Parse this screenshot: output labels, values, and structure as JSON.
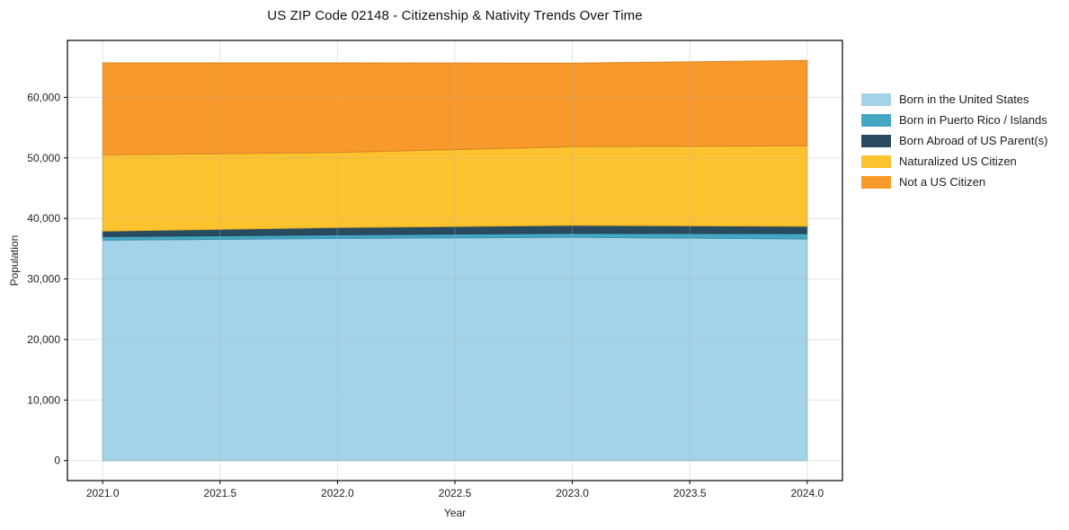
{
  "chart_data": {
    "type": "area",
    "stacked": true,
    "title": "US ZIP Code 02148 - Citizenship & Nativity Trends Over Time",
    "xlabel": "Year",
    "ylabel": "Population",
    "x": [
      2021,
      2022,
      2023,
      2024
    ],
    "series": [
      {
        "name": "Born in the United States",
        "color": "#a3d3e9",
        "values": [
          36400,
          36700,
          36900,
          36600
        ]
      },
      {
        "name": "Born in Puerto Rico / Islands",
        "color": "#44a7c4",
        "values": [
          600,
          600,
          650,
          900
        ]
      },
      {
        "name": "Born Abroad of US Parent(s)",
        "color": "#284b5f",
        "values": [
          900,
          1200,
          1300,
          1200
        ]
      },
      {
        "name": "Naturalized US Citizen",
        "color": "#fdc32f",
        "values": [
          12600,
          12400,
          13000,
          13300
        ]
      },
      {
        "name": "Not a US Citizen",
        "color": "#f8992b",
        "values": [
          15200,
          14800,
          13800,
          14100
        ]
      }
    ],
    "xlim": [
      2020.85,
      2024.15
    ],
    "ylim": [
      -3305,
      69405
    ],
    "x_ticks": [
      {
        "v": 2021.0,
        "label": "2021.0"
      },
      {
        "v": 2021.5,
        "label": "2021.5"
      },
      {
        "v": 2022.0,
        "label": "2022.0"
      },
      {
        "v": 2022.5,
        "label": "2022.5"
      },
      {
        "v": 2023.0,
        "label": "2023.0"
      },
      {
        "v": 2023.5,
        "label": "2023.5"
      },
      {
        "v": 2024.0,
        "label": "2024.0"
      }
    ],
    "y_ticks": [
      {
        "v": 0,
        "label": "0"
      },
      {
        "v": 10000,
        "label": "10,000"
      },
      {
        "v": 20000,
        "label": "20,000"
      },
      {
        "v": 30000,
        "label": "30,000"
      },
      {
        "v": 40000,
        "label": "40,000"
      },
      {
        "v": 50000,
        "label": "50,000"
      },
      {
        "v": 60000,
        "label": "60,000"
      }
    ],
    "grid": true,
    "grid_color": "#b0b0b0",
    "legend_position": "outside-right"
  }
}
